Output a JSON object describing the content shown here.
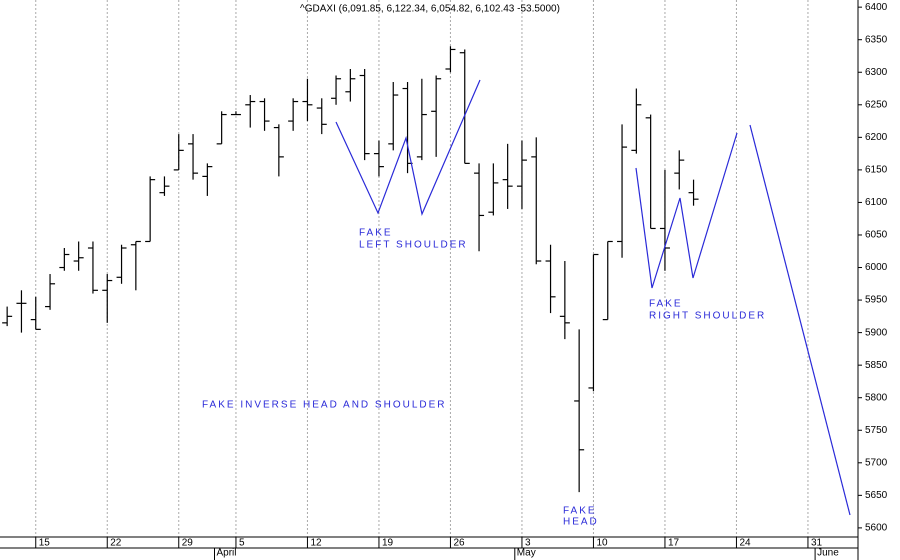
{
  "chart_data": {
    "type": "ohlc",
    "title": "^GDAXI (6,091.85, 6,122.34, 6,054.82, 6,102.43 -53.5000)",
    "categories": [
      null,
      null,
      "15",
      null,
      null,
      null,
      null,
      "22",
      null,
      null,
      null,
      null,
      "29",
      null,
      null,
      null,
      "5",
      null,
      null,
      null,
      null,
      "12",
      null,
      null,
      null,
      null,
      "19",
      null,
      null,
      null,
      null,
      "26",
      null,
      null,
      null,
      null,
      "3",
      null,
      null,
      null,
      null,
      "10",
      null,
      null,
      null,
      null,
      "17",
      null,
      null,
      null,
      null,
      "24",
      null,
      null,
      null,
      null,
      "31",
      null,
      null,
      null
    ],
    "months": [
      null,
      null,
      null,
      null,
      null,
      null,
      null,
      null,
      null,
      null,
      null,
      null,
      null,
      null,
      null,
      "April",
      null,
      null,
      null,
      null,
      null,
      null,
      null,
      null,
      null,
      null,
      null,
      null,
      null,
      null,
      null,
      null,
      null,
      null,
      null,
      null,
      "May",
      null,
      null,
      null,
      null,
      null,
      null,
      null,
      null,
      null,
      null,
      null,
      null,
      null,
      null,
      null,
      null,
      null,
      null,
      null,
      null,
      "June",
      null,
      null
    ],
    "open": [
      5915,
      5945,
      5920,
      5940,
      6000,
      6010,
      6030,
      5965,
      5985,
      6035,
      6040,
      6115,
      6150,
      6190,
      6140,
      6190,
      6235,
      6250,
      6255,
      6215,
      6225,
      6255,
      6245,
      6260,
      6270,
      6295,
      6175,
      6190,
      6275,
      6170,
      6240,
      6305,
      6330,
      6145,
      6085,
      6135,
      6125,
      6170,
      6010,
      5925,
      5795,
      5815,
      5920,
      6040,
      6180,
      6230,
      6060,
      6145,
      6115,
      null,
      null,
      null,
      null,
      null,
      null,
      null,
      null,
      null,
      null,
      null
    ],
    "high": [
      5940,
      5965,
      5955,
      5990,
      6030,
      6040,
      6040,
      5990,
      6035,
      6040,
      6140,
      6140,
      6205,
      6205,
      6160,
      6240,
      6240,
      6265,
      6260,
      6220,
      6260,
      6290,
      6260,
      6295,
      6305,
      6305,
      6195,
      6285,
      6285,
      6290,
      6295,
      6340,
      6335,
      6160,
      6160,
      6190,
      6195,
      6200,
      6035,
      6010,
      5905,
      6020,
      6040,
      6220,
      6275,
      6235,
      6150,
      6180,
      6135,
      null,
      null,
      null,
      null,
      null,
      null,
      null,
      null,
      null,
      null,
      null
    ],
    "low": [
      5910,
      5900,
      5905,
      5935,
      5995,
      5995,
      5960,
      5915,
      5975,
      5965,
      6040,
      6110,
      6150,
      6135,
      6110,
      6190,
      6235,
      6215,
      6210,
      6140,
      6210,
      6225,
      6205,
      6250,
      6255,
      6165,
      6140,
      6180,
      6145,
      6165,
      6170,
      6300,
      6160,
      6025,
      6080,
      6090,
      6090,
      6005,
      5930,
      5890,
      5655,
      5810,
      5920,
      6015,
      6175,
      6060,
      5995,
      6120,
      6095,
      null,
      null,
      null,
      null,
      null,
      null,
      null,
      null,
      null,
      null,
      null
    ],
    "close": [
      5925,
      5945,
      5905,
      5975,
      6020,
      6015,
      5965,
      5980,
      6030,
      6040,
      6135,
      6125,
      6180,
      6145,
      6155,
      6235,
      6235,
      6255,
      6225,
      6170,
      6255,
      6250,
      6220,
      6290,
      6290,
      6175,
      6155,
      6265,
      6160,
      6235,
      6290,
      6335,
      6160,
      6080,
      6130,
      6125,
      6165,
      6010,
      5955,
      5915,
      5720,
      6020,
      6040,
      6185,
      6250,
      6060,
      6030,
      6165,
      6105,
      null,
      null,
      null,
      null,
      null,
      null,
      null,
      null,
      null,
      null,
      null
    ],
    "color": "#000000",
    "ylim": [
      5586,
      6411
    ],
    "yticks": [
      5600,
      5650,
      5700,
      5750,
      5800,
      5850,
      5900,
      5950,
      6000,
      6050,
      6100,
      6150,
      6200,
      6250,
      6300,
      6350,
      6400
    ],
    "grid": true,
    "annotations": {
      "left_shoulder": [
        "FAKE",
        "LEFT SHOULDER"
      ],
      "right_shoulder": [
        "FAKE",
        "RIGHT SHOULDER"
      ],
      "head": [
        "FAKE",
        "HEAD"
      ],
      "pattern": "FAKE INVERSE HEAD AND SHOULDER"
    }
  }
}
